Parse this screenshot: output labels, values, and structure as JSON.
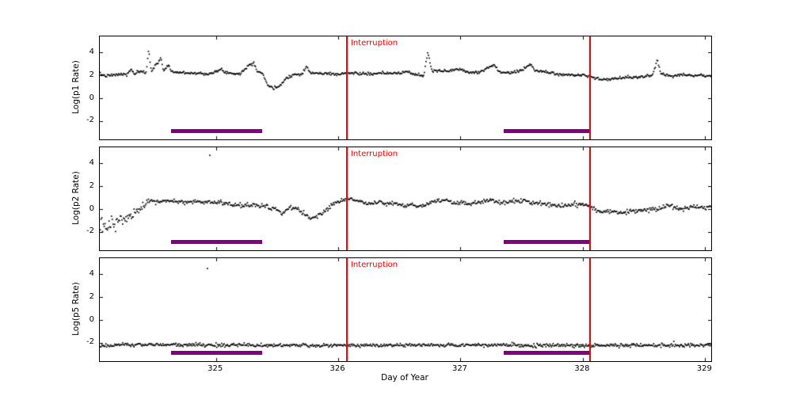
{
  "figure": {
    "background": "#ffffff"
  },
  "chart_data": {
    "type": "scatter",
    "title": "",
    "xlabel": "Day of Year",
    "x_range": [
      324.05,
      329.05
    ],
    "x_ticks": [
      {
        "value": 325,
        "label": "325"
      },
      {
        "value": 326,
        "label": "326"
      },
      {
        "value": 327,
        "label": "327"
      },
      {
        "value": 328,
        "label": "328"
      },
      {
        "value": 329,
        "label": "329"
      }
    ],
    "interruption_lines": {
      "x": [
        326.07,
        328.06
      ],
      "color": "#ff0000",
      "label": "Interruption"
    },
    "coverage_bars": {
      "spans": [
        [
          324.63,
          325.38
        ],
        [
          327.35,
          328.06
        ]
      ],
      "y": -2.9,
      "color": "#800080",
      "thickness_px": 5
    },
    "panels": [
      {
        "ylabel": "Log(p1 Rate)",
        "y_range": [
          -3.6,
          5.4
        ],
        "y_ticks": [
          {
            "value": -2,
            "label": "-2"
          },
          {
            "value": 0,
            "label": "0"
          },
          {
            "value": 2,
            "label": "2"
          },
          {
            "value": 4,
            "label": "4"
          }
        ],
        "marker_color": "#000000",
        "marker_size": 1.7,
        "n_points": 760,
        "seed": 7,
        "noise_sigma": [
          [
            324.05,
            0.06
          ],
          [
            329.05,
            0.06
          ]
        ],
        "trend": [
          [
            324.05,
            2.1
          ],
          [
            324.1,
            1.95
          ],
          [
            324.16,
            2.0
          ],
          [
            324.22,
            2.1
          ],
          [
            324.27,
            2.05
          ],
          [
            324.31,
            2.55
          ],
          [
            324.33,
            2.1
          ],
          [
            324.37,
            2.3
          ],
          [
            324.43,
            2.25
          ],
          [
            324.45,
            4.3
          ],
          [
            324.47,
            2.4
          ],
          [
            324.52,
            3.0
          ],
          [
            324.55,
            3.6
          ],
          [
            324.57,
            2.35
          ],
          [
            324.61,
            2.9
          ],
          [
            324.64,
            2.3
          ],
          [
            324.7,
            2.25
          ],
          [
            324.8,
            2.2
          ],
          [
            324.9,
            2.15
          ],
          [
            324.98,
            2.2
          ],
          [
            325.04,
            2.5
          ],
          [
            325.1,
            2.2
          ],
          [
            325.2,
            2.15
          ],
          [
            325.27,
            2.9
          ],
          [
            325.31,
            3.1
          ],
          [
            325.34,
            2.35
          ],
          [
            325.38,
            2.2
          ],
          [
            325.42,
            1.2
          ],
          [
            325.47,
            0.8
          ],
          [
            325.52,
            1.1
          ],
          [
            325.58,
            1.8
          ],
          [
            325.63,
            2.05
          ],
          [
            325.7,
            2.1
          ],
          [
            325.74,
            2.8
          ],
          [
            325.77,
            2.2
          ],
          [
            325.9,
            2.15
          ],
          [
            326.0,
            2.1
          ],
          [
            326.1,
            2.2
          ],
          [
            326.2,
            2.15
          ],
          [
            326.3,
            2.1
          ],
          [
            326.4,
            2.2
          ],
          [
            326.5,
            2.15
          ],
          [
            326.56,
            2.35
          ],
          [
            326.62,
            2.1
          ],
          [
            326.7,
            1.95
          ],
          [
            326.73,
            4.0
          ],
          [
            326.77,
            2.35
          ],
          [
            326.9,
            2.4
          ],
          [
            327.0,
            2.55
          ],
          [
            327.05,
            2.3
          ],
          [
            327.15,
            2.25
          ],
          [
            327.27,
            2.95
          ],
          [
            327.31,
            2.35
          ],
          [
            327.4,
            2.2
          ],
          [
            327.5,
            2.4
          ],
          [
            327.57,
            3.0
          ],
          [
            327.61,
            2.4
          ],
          [
            327.7,
            2.3
          ],
          [
            327.8,
            2.1
          ],
          [
            327.9,
            2.0
          ],
          [
            328.0,
            2.05
          ],
          [
            328.08,
            1.85
          ],
          [
            328.15,
            1.6
          ],
          [
            328.25,
            1.7
          ],
          [
            328.35,
            1.8
          ],
          [
            328.45,
            1.85
          ],
          [
            328.57,
            1.95
          ],
          [
            328.61,
            3.35
          ],
          [
            328.64,
            2.1
          ],
          [
            328.72,
            2.0
          ],
          [
            328.82,
            2.05
          ],
          [
            328.92,
            2.0
          ],
          [
            329.05,
            1.95
          ]
        ],
        "outliers": []
      },
      {
        "ylabel": "Log(p2 Rate)",
        "y_range": [
          -3.6,
          5.4
        ],
        "y_ticks": [
          {
            "value": -2,
            "label": "-2"
          },
          {
            "value": 0,
            "label": "0"
          },
          {
            "value": 2,
            "label": "2"
          },
          {
            "value": 4,
            "label": "4"
          }
        ],
        "marker_color": "#000000",
        "marker_size": 1.7,
        "n_points": 760,
        "seed": 13,
        "noise_sigma": [
          [
            324.05,
            0.32
          ],
          [
            324.4,
            0.22
          ],
          [
            324.55,
            0.1
          ],
          [
            329.05,
            0.1
          ]
        ],
        "trend": [
          [
            324.05,
            -1.6
          ],
          [
            324.1,
            -1.5
          ],
          [
            324.16,
            -1.25
          ],
          [
            324.22,
            -1.0
          ],
          [
            324.28,
            -0.75
          ],
          [
            324.33,
            -0.45
          ],
          [
            324.38,
            -0.1
          ],
          [
            324.43,
            0.4
          ],
          [
            324.48,
            0.65
          ],
          [
            324.58,
            0.7
          ],
          [
            324.72,
            0.65
          ],
          [
            324.86,
            0.6
          ],
          [
            325.0,
            0.55
          ],
          [
            325.1,
            0.5
          ],
          [
            325.2,
            0.3
          ],
          [
            325.3,
            0.35
          ],
          [
            325.4,
            0.3
          ],
          [
            325.48,
            0.0
          ],
          [
            325.54,
            -0.45
          ],
          [
            325.61,
            0.2
          ],
          [
            325.68,
            -0.1
          ],
          [
            325.78,
            -0.9
          ],
          [
            325.84,
            -0.55
          ],
          [
            325.94,
            0.3
          ],
          [
            326.04,
            0.8
          ],
          [
            326.1,
            1.0
          ],
          [
            326.16,
            0.7
          ],
          [
            326.24,
            0.45
          ],
          [
            326.34,
            0.6
          ],
          [
            326.44,
            0.5
          ],
          [
            326.54,
            0.25
          ],
          [
            326.6,
            0.4
          ],
          [
            326.68,
            0.2
          ],
          [
            326.76,
            0.6
          ],
          [
            326.86,
            0.75
          ],
          [
            326.96,
            0.55
          ],
          [
            327.06,
            0.45
          ],
          [
            327.16,
            0.6
          ],
          [
            327.26,
            0.7
          ],
          [
            327.36,
            0.55
          ],
          [
            327.46,
            0.75
          ],
          [
            327.56,
            0.6
          ],
          [
            327.66,
            0.5
          ],
          [
            327.76,
            0.4
          ],
          [
            327.86,
            0.3
          ],
          [
            327.96,
            0.45
          ],
          [
            328.06,
            0.3
          ],
          [
            328.12,
            -0.25
          ],
          [
            328.22,
            -0.3
          ],
          [
            328.32,
            -0.25
          ],
          [
            328.42,
            -0.2
          ],
          [
            328.52,
            -0.1
          ],
          [
            328.62,
            0.05
          ],
          [
            328.7,
            0.35
          ],
          [
            328.8,
            0.0
          ],
          [
            328.9,
            0.15
          ],
          [
            329.05,
            0.1
          ]
        ],
        "outliers": [
          [
            324.95,
            4.7
          ]
        ]
      },
      {
        "ylabel": "Log(p5 Rate)",
        "y_range": [
          -3.6,
          5.4
        ],
        "y_ticks": [
          {
            "value": -2,
            "label": "-2"
          },
          {
            "value": 0,
            "label": "0"
          },
          {
            "value": 2,
            "label": "2"
          },
          {
            "value": 4,
            "label": "4"
          }
        ],
        "marker_color": "#000000",
        "marker_size": 1.7,
        "n_points": 760,
        "seed": 21,
        "noise_sigma": [
          [
            324.05,
            0.08
          ],
          [
            329.05,
            0.08
          ]
        ],
        "trend": [
          [
            324.05,
            -2.25
          ],
          [
            324.4,
            -2.15
          ],
          [
            325.0,
            -2.2
          ],
          [
            326.0,
            -2.22
          ],
          [
            327.0,
            -2.2
          ],
          [
            328.0,
            -2.22
          ],
          [
            329.05,
            -2.2
          ]
        ],
        "outliers": [
          [
            324.93,
            4.5
          ]
        ]
      }
    ]
  }
}
